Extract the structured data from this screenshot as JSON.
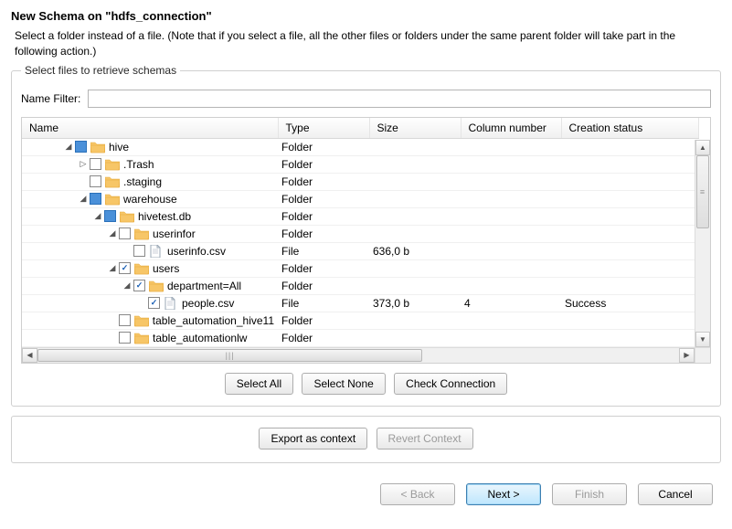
{
  "title": "New Schema on \"hdfs_connection\"",
  "subtitle": "Select a folder instead of a file. (Note that if you select a file, all the other files or folders under the same parent folder will take part in the following action.)",
  "panel_legend": "Select files to retrieve schemas",
  "filter": {
    "label": "Name Filter:",
    "value": ""
  },
  "columns": {
    "name": "Name",
    "type": "Type",
    "size": "Size",
    "colnum": "Column number",
    "status": "Creation status"
  },
  "column_widths": {
    "name": 280,
    "type": 100,
    "size": 100,
    "colnum": 110,
    "status": 150
  },
  "rows": [
    {
      "level": 0,
      "expander": "open",
      "check": "partial",
      "icon": "folder",
      "name": "hive",
      "type": "Folder",
      "size": "",
      "colnum": "",
      "status": ""
    },
    {
      "level": 1,
      "expander": "closed",
      "check": "none",
      "icon": "folder",
      "name": ".Trash",
      "type": "Folder",
      "size": "",
      "colnum": "",
      "status": ""
    },
    {
      "level": 1,
      "expander": "none",
      "check": "none",
      "icon": "folder",
      "name": ".staging",
      "type": "Folder",
      "size": "",
      "colnum": "",
      "status": ""
    },
    {
      "level": 1,
      "expander": "open",
      "check": "partial",
      "icon": "folder",
      "name": "warehouse",
      "type": "Folder",
      "size": "",
      "colnum": "",
      "status": ""
    },
    {
      "level": 2,
      "expander": "open",
      "check": "partial",
      "icon": "folder",
      "name": "hivetest.db",
      "type": "Folder",
      "size": "",
      "colnum": "",
      "status": ""
    },
    {
      "level": 3,
      "expander": "open",
      "check": "none",
      "icon": "folder",
      "name": "userinfor",
      "type": "Folder",
      "size": "",
      "colnum": "",
      "status": ""
    },
    {
      "level": 4,
      "expander": "none",
      "check": "none",
      "icon": "file",
      "name": "userinfo.csv",
      "type": "File",
      "size": "636,0 b",
      "colnum": "",
      "status": ""
    },
    {
      "level": 3,
      "expander": "open",
      "check": "checked",
      "icon": "folder",
      "name": "users",
      "type": "Folder",
      "size": "",
      "colnum": "",
      "status": ""
    },
    {
      "level": 4,
      "expander": "open",
      "check": "checked",
      "icon": "folder",
      "name": "department=All",
      "type": "Folder",
      "size": "",
      "colnum": "",
      "status": ""
    },
    {
      "level": 5,
      "expander": "none",
      "check": "checked",
      "icon": "file",
      "name": "people.csv",
      "type": "File",
      "size": "373,0 b",
      "colnum": "4",
      "status": "Success"
    },
    {
      "level": 3,
      "expander": "none",
      "check": "none",
      "icon": "folder",
      "name": "table_automation_hive11",
      "type": "Folder",
      "size": "",
      "colnum": "",
      "status": ""
    },
    {
      "level": 3,
      "expander": "none",
      "check": "none",
      "icon": "folder",
      "name": "table_automationlw",
      "type": "Folder",
      "size": "",
      "colnum": "",
      "status": ""
    }
  ],
  "actions": {
    "select_all": "Select All",
    "select_none": "Select None",
    "check_connection": "Check Connection",
    "export_context": "Export as context",
    "revert_context": "Revert Context"
  },
  "footer": {
    "back": "< Back",
    "next": "Next >",
    "finish": "Finish",
    "cancel": "Cancel"
  },
  "icon_colors": {
    "folder_fill": "#f7c667",
    "folder_tab": "#e6a93a",
    "file_fill": "#ffffff",
    "file_border": "#9aa7b5"
  }
}
